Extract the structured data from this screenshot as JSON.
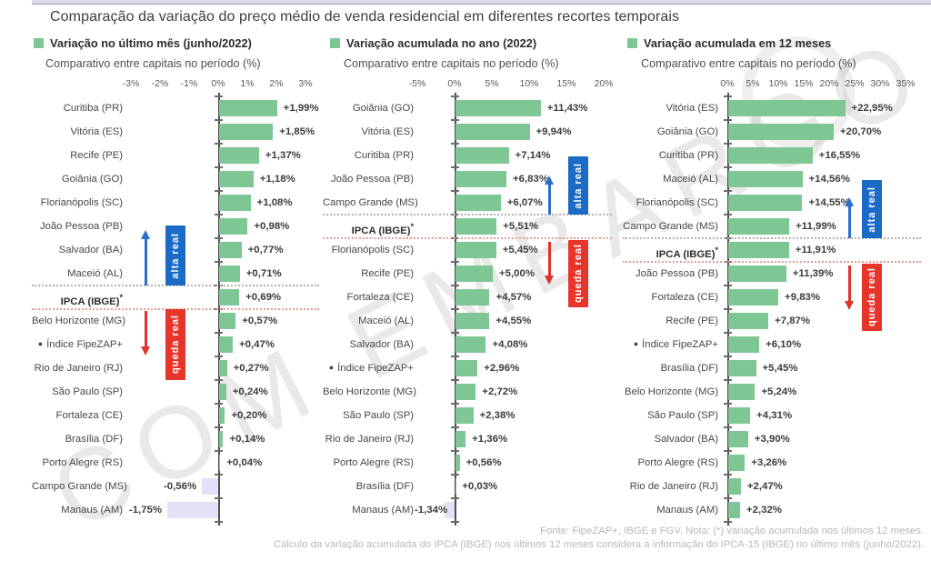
{
  "page": {
    "title": "Comparação da variação do preço médio de venda residencial em diferentes recortes temporais",
    "watermark": "COM EMBARGO",
    "footer": {
      "line1": "Fonte: FipeZAP+, IBGE e FGV. Nota: (*) variação acumulada nos últimos 12 meses.",
      "line2": "Cálculo da variação acumulada do IPCA (IBGE) nos últimos 12 meses considera a informação do IPCA-15 (IBGE) no último mês (junho/2022)."
    }
  },
  "colors": {
    "bar_positive": "#7ec795",
    "bar_negative": "#e5dff7",
    "alta_real_blue": "#1a6ac6",
    "queda_real_red": "#e6352b",
    "arrow_blue": "#2a6fc9",
    "arrow_red": "#e0322a",
    "divider_gray": "#b7aeae",
    "divider_pink": "#e69e97",
    "axis": "#4c4c4c"
  },
  "chart_data": [
    {
      "type": "bar",
      "orientation": "horizontal",
      "legend": "Variação no último mês (junho/2022)",
      "subtitle": "Comparativo entre capitais no período (%)",
      "unit": "%",
      "axis_range": [
        -3,
        3
      ],
      "axis_ticks": [
        {
          "label": "-3%",
          "value": -3
        },
        {
          "label": "-2%",
          "value": -2
        },
        {
          "label": "-1%",
          "value": -1
        },
        {
          "label": "0%",
          "value": 0
        },
        {
          "label": "1%",
          "value": 1
        },
        {
          "label": "2%",
          "value": 2
        },
        {
          "label": "3%",
          "value": 3
        }
      ],
      "annotations": {
        "above": "alta real",
        "below": "queda real"
      },
      "rows": [
        {
          "label": "Curitiba (PR)",
          "value": 1.99,
          "display": "+1,99%"
        },
        {
          "label": "Vitória (ES)",
          "value": 1.85,
          "display": "+1,85%"
        },
        {
          "label": "Recife (PE)",
          "value": 1.37,
          "display": "+1,37%"
        },
        {
          "label": "Goiânia (GO)",
          "value": 1.18,
          "display": "+1,18%"
        },
        {
          "label": "Florianópolis (SC)",
          "value": 1.08,
          "display": "+1,08%"
        },
        {
          "label": "João Pessoa (PB)",
          "value": 0.98,
          "display": "+0,98%"
        },
        {
          "label": "Salvador (BA)",
          "value": 0.77,
          "display": "+0,77%"
        },
        {
          "label": "Maceió (AL)",
          "value": 0.71,
          "display": "+0,71%"
        },
        {
          "label": "IPCA (IBGE)",
          "suffix": "*",
          "reference": true,
          "value": 0.69,
          "display": "+0,69%"
        },
        {
          "label": "Belo Horizonte (MG)",
          "value": 0.57,
          "display": "+0,57%"
        },
        {
          "label": "Índice FipeZAP+",
          "bullet": true,
          "value": 0.47,
          "display": "+0,47%"
        },
        {
          "label": "Rio de Janeiro (RJ)",
          "value": 0.27,
          "display": "+0,27%"
        },
        {
          "label": "São Paulo (SP)",
          "value": 0.24,
          "display": "+0,24%"
        },
        {
          "label": "Fortaleza (CE)",
          "value": 0.2,
          "display": "+0,20%"
        },
        {
          "label": "Brasília (DF)",
          "value": 0.14,
          "display": "+0,14%"
        },
        {
          "label": "Porto Alegre (RS)",
          "value": 0.04,
          "display": "+0,04%"
        },
        {
          "label": "Campo Grande (MS)",
          "value": -0.56,
          "display": "-0,56%"
        },
        {
          "label": "Manaus (AM)",
          "value": -1.75,
          "display": "-1,75%"
        }
      ]
    },
    {
      "type": "bar",
      "orientation": "horizontal",
      "legend": "Variação acumulada no ano (2022)",
      "subtitle": "Comparativo entre capitais no período (%)",
      "unit": "%",
      "axis_range": [
        -5,
        20
      ],
      "axis_ticks": [
        {
          "label": "-5%",
          "value": -5
        },
        {
          "label": "0%",
          "value": 0
        },
        {
          "label": "5%",
          "value": 5
        },
        {
          "label": "10%",
          "value": 10
        },
        {
          "label": "15%",
          "value": 15
        },
        {
          "label": "20%",
          "value": 20
        }
      ],
      "annotations": {
        "above": "alta real",
        "below": "queda real"
      },
      "rows": [
        {
          "label": "Goiânia (GO)",
          "value": 11.43,
          "display": "+11,43%"
        },
        {
          "label": "Vitória (ES)",
          "value": 9.94,
          "display": "+9,94%"
        },
        {
          "label": "Curitiba (PR)",
          "value": 7.14,
          "display": "+7,14%"
        },
        {
          "label": "João Pessoa (PB)",
          "value": 6.83,
          "display": "+6,83%"
        },
        {
          "label": "Campo Grande (MS)",
          "value": 6.07,
          "display": "+6,07%"
        },
        {
          "label": "IPCA (IBGE)",
          "suffix": "*",
          "reference": true,
          "value": 5.51,
          "display": "+5,51%"
        },
        {
          "label": "Florianópolis (SC)",
          "value": 5.45,
          "display": "+5,45%"
        },
        {
          "label": "Recife (PE)",
          "value": 5.0,
          "display": "+5,00%"
        },
        {
          "label": "Fortaleza (CE)",
          "value": 4.57,
          "display": "+4,57%"
        },
        {
          "label": "Maceió (AL)",
          "value": 4.55,
          "display": "+4,55%"
        },
        {
          "label": "Salvador (BA)",
          "value": 4.08,
          "display": "+4,08%"
        },
        {
          "label": "Índice FipeZAP+",
          "bullet": true,
          "value": 2.96,
          "display": "+2,96%"
        },
        {
          "label": "Belo Horizonte (MG)",
          "value": 2.72,
          "display": "+2,72%"
        },
        {
          "label": "São Paulo (SP)",
          "value": 2.38,
          "display": "+2,38%"
        },
        {
          "label": "Rio de Janeiro (RJ)",
          "value": 1.36,
          "display": "+1,36%"
        },
        {
          "label": "Porto Alegre (RS)",
          "value": 0.56,
          "display": "+0,56%"
        },
        {
          "label": "Brasília (DF)",
          "value": 0.03,
          "display": "+0,03%"
        },
        {
          "label": "Manaus (AM)",
          "value": -1.34,
          "display": "-1,34%"
        }
      ]
    },
    {
      "type": "bar",
      "orientation": "horizontal",
      "legend": "Variação acumulada em 12 meses",
      "subtitle": "Comparativo entre capitais no período (%)",
      "unit": "%",
      "axis_range": [
        0,
        35
      ],
      "axis_ticks": [
        {
          "label": "0%",
          "value": 0
        },
        {
          "label": "5%",
          "value": 5
        },
        {
          "label": "10%",
          "value": 10
        },
        {
          "label": "15%",
          "value": 15
        },
        {
          "label": "20%",
          "value": 20
        },
        {
          "label": "25%",
          "value": 25
        },
        {
          "label": "30%",
          "value": 30
        },
        {
          "label": "35%",
          "value": 35
        }
      ],
      "annotations": {
        "above": "alta real",
        "below": "queda real"
      },
      "rows": [
        {
          "label": "Vitória (ES)",
          "value": 22.95,
          "display": "+22,95%"
        },
        {
          "label": "Goiânia (GO)",
          "value": 20.7,
          "display": "+20,70%"
        },
        {
          "label": "Curitiba (PR)",
          "value": 16.55,
          "display": "+16,55%"
        },
        {
          "label": "Maceió (AL)",
          "value": 14.56,
          "display": "+14,56%"
        },
        {
          "label": "Florianópolis (SC)",
          "value": 14.55,
          "display": "+14,55%"
        },
        {
          "label": "Campo Grande (MS)",
          "value": 11.99,
          "display": "+11,99%"
        },
        {
          "label": "IPCA (IBGE)",
          "suffix": "*",
          "reference": true,
          "value": 11.91,
          "display": "+11,91%"
        },
        {
          "label": "João Pessoa (PB)",
          "value": 11.39,
          "display": "+11,39%"
        },
        {
          "label": "Fortaleza (CE)",
          "value": 9.83,
          "display": "+9,83%"
        },
        {
          "label": "Recife (PE)",
          "value": 7.87,
          "display": "+7,87%"
        },
        {
          "label": "Índice FipeZAP+",
          "bullet": true,
          "value": 6.1,
          "display": "+6,10%"
        },
        {
          "label": "Brasília (DF)",
          "value": 5.45,
          "display": "+5,45%"
        },
        {
          "label": "Belo Horizonte (MG)",
          "value": 5.24,
          "display": "+5,24%"
        },
        {
          "label": "São Paulo (SP)",
          "value": 4.31,
          "display": "+4,31%"
        },
        {
          "label": "Salvador (BA)",
          "value": 3.9,
          "display": "+3,90%"
        },
        {
          "label": "Porto Alegre (RS)",
          "value": 3.26,
          "display": "+3,26%"
        },
        {
          "label": "Rio de Janeiro (RJ)",
          "value": 2.47,
          "display": "+2,47%"
        },
        {
          "label": "Manaus (AM)",
          "value": 2.32,
          "display": "+2,32%"
        }
      ]
    }
  ]
}
